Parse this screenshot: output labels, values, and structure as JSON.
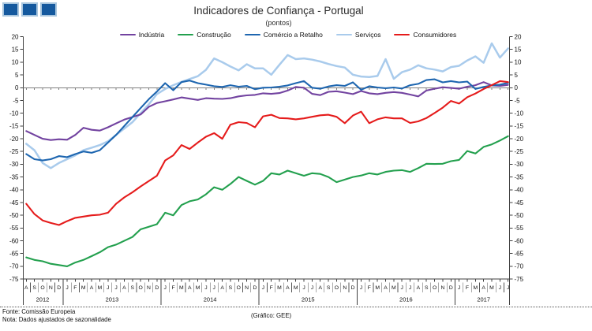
{
  "logo": {
    "square_count": 3,
    "fill_color": "#15599e",
    "border_color": "#a9c6de"
  },
  "header": {
    "title": "Indicadores de Confiança - Portugal",
    "subtitle": "(pontos)"
  },
  "footer": {
    "fonte": "Fonte: Comissão Europeia",
    "nota": "Nota: Dados ajustados de sazonalidade",
    "grafico": "(Gráfico: GEE)"
  },
  "chart_data": {
    "type": "line",
    "title": "Indicadores de Confiança - Portugal",
    "subtitle": "(pontos)",
    "ylim": [
      -75,
      20
    ],
    "ytick_step": 5,
    "grid": false,
    "legend_position": "top",
    "axis_color": "#404040",
    "zero_line_color": "#808080",
    "x_month_letters": [
      "A",
      "S",
      "O",
      "N",
      "D",
      "J",
      "F",
      "M",
      "A",
      "M",
      "J",
      "J",
      "A",
      "S",
      "O",
      "N",
      "D",
      "J",
      "F",
      "M",
      "A",
      "M",
      "J",
      "J",
      "A",
      "S",
      "O",
      "N",
      "D",
      "J",
      "F",
      "M",
      "A",
      "M",
      "J",
      "J",
      "A",
      "S",
      "O",
      "N",
      "D",
      "J",
      "F",
      "M",
      "A",
      "M",
      "J",
      "J",
      "A",
      "S",
      "O",
      "N",
      "D",
      "J",
      "F",
      "M",
      "A",
      "M",
      "J",
      "J"
    ],
    "years": [
      {
        "label": "2012",
        "start": 0,
        "count": 5
      },
      {
        "label": "2013",
        "start": 5,
        "count": 12
      },
      {
        "label": "2014",
        "start": 17,
        "count": 12
      },
      {
        "label": "2015",
        "start": 29,
        "count": 12
      },
      {
        "label": "2016",
        "start": 41,
        "count": 12
      },
      {
        "label": "2017",
        "start": 53,
        "count": 7
      }
    ],
    "series": [
      {
        "name": "Indústria",
        "color": "#7243a0",
        "values": [
          -17,
          -18.5,
          -20,
          -20.5,
          -20.2,
          -20.4,
          -18.5,
          -15.7,
          -16.5,
          -16.8,
          -15.5,
          -14,
          -12.5,
          -11.5,
          -10.5,
          -7.5,
          -6,
          -5.3,
          -4.6,
          -3.8,
          -4.3,
          -4.8,
          -4.1,
          -4.3,
          -4.4,
          -4.1,
          -3.4,
          -3,
          -2.8,
          -2.2,
          -2.4,
          -2.1,
          -1.1,
          0.3,
          0,
          -2.4,
          -2.9,
          -1.6,
          -1.4,
          -1.9,
          -2.5,
          -1.3,
          -2.2,
          -2.5,
          -2,
          -1.7,
          -2,
          -2.7,
          -3.4,
          -1.1,
          -0.4,
          0.2,
          -0.1,
          -0.4,
          0.4,
          1,
          2.2,
          0.9,
          0.7,
          1.1
        ]
      },
      {
        "name": "Construção",
        "color": "#23a04e",
        "values": [
          -66.5,
          -67.5,
          -68,
          -69,
          -69.5,
          -70,
          -68.5,
          -67.5,
          -66,
          -64.5,
          -62.5,
          -61.5,
          -60,
          -58.5,
          -55.5,
          -54.5,
          -53.5,
          -49,
          -50,
          -46,
          -44.5,
          -43.8,
          -41.8,
          -39,
          -40,
          -37.7,
          -35,
          -36.5,
          -38,
          -36.5,
          -33.5,
          -34,
          -32.5,
          -33.5,
          -34.5,
          -33.5,
          -33.8,
          -35,
          -37,
          -36,
          -35,
          -34.4,
          -33.5,
          -34,
          -33,
          -32.5,
          -32.3,
          -33,
          -31.5,
          -29.8,
          -29.9,
          -29.8,
          -28.8,
          -28.3,
          -24.8,
          -25.8,
          -23.2,
          -22.2,
          -20.7,
          -19
        ]
      },
      {
        "name": "Comércio a Retalho",
        "color": "#1e66b0",
        "values": [
          -26,
          -28,
          -28.5,
          -28,
          -26.8,
          -27.2,
          -26,
          -25,
          -25.5,
          -24.5,
          -21.5,
          -18.5,
          -15,
          -11.5,
          -8,
          -4.5,
          -1.5,
          1.8,
          -1,
          2.2,
          2.8,
          1.8,
          1.2,
          0.6,
          0.3,
          1,
          0.4,
          0.7,
          -0.6,
          0,
          0.1,
          0.4,
          0.9,
          1.8,
          2.6,
          0,
          -0.4,
          0.5,
          1,
          0.7,
          2.1,
          -0.8,
          0.6,
          0.1,
          -0.2,
          0.1,
          -0.3,
          1,
          1.5,
          3,
          3.3,
          2.1,
          2.6,
          2.1,
          2.4,
          -0.5,
          0.3,
          0.9,
          1.2,
          1.9
        ]
      },
      {
        "name": "Serviços",
        "color": "#a9cbec",
        "values": [
          -22,
          -24.5,
          -29.5,
          -31.5,
          -29.5,
          -28,
          -26.5,
          -24.5,
          -23.5,
          -22.5,
          -21,
          -18.5,
          -16,
          -13.5,
          -10,
          -6.5,
          -2.5,
          -0.5,
          1,
          2.3,
          3.4,
          4.5,
          7,
          11.5,
          10,
          8.3,
          6.8,
          9.2,
          7.6,
          7.6,
          5.1,
          9,
          12.8,
          11.2,
          11.5,
          11,
          10.3,
          9.3,
          8.5,
          7.9,
          5.1,
          4.4,
          4.2,
          4.6,
          11.2,
          3.5,
          6.1,
          7.1,
          8.8,
          7.6,
          7.1,
          6.4,
          8.1,
          8.6,
          10.7,
          12.3,
          9.8,
          17.4,
          11.8,
          15.4
        ]
      },
      {
        "name": "Consumidores",
        "color": "#e51b1b",
        "values": [
          -45.5,
          -49.5,
          -52,
          -53,
          -53.8,
          -52.3,
          -51,
          -50.5,
          -50,
          -49.8,
          -49,
          -45.5,
          -43,
          -41,
          -38.7,
          -36.6,
          -34.5,
          -28.5,
          -26.5,
          -22.5,
          -24,
          -21.5,
          -19.2,
          -17.8,
          -20,
          -14.5,
          -13.5,
          -13.8,
          -15.5,
          -11.2,
          -10.6,
          -11.9,
          -12,
          -12.4,
          -12,
          -11.4,
          -10.8,
          -10.6,
          -11.4,
          -13.9,
          -10.9,
          -9.4,
          -13.9,
          -12.4,
          -11.6,
          -12,
          -12,
          -13.8,
          -13.2,
          -11.9,
          -9.9,
          -7.8,
          -5.2,
          -6.2,
          -3.7,
          -2.3,
          -0.5,
          1,
          2.6,
          2.2
        ]
      }
    ]
  }
}
